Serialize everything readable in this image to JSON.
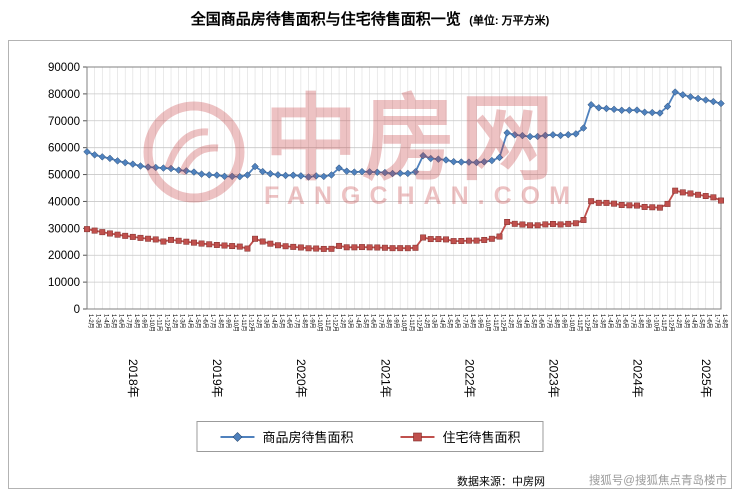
{
  "source": {
    "text": "数据来源：中房网"
  },
  "watermark": {
    "brand": "中房网",
    "domain": "FANGCHAN.COM",
    "overlay": "搜狐号@搜狐焦点青岛楼市",
    "color": "#c5393c"
  },
  "chart_data": {
    "type": "line",
    "title": "全国商品房待售面积与住宅待售面积一览",
    "unit": "(单位: 万平方米)",
    "ylabel": "",
    "xlabel": "",
    "ylim": [
      0,
      90000
    ],
    "ytick_step": 10000,
    "grid": true,
    "legend_position": "bottom",
    "x_labels": [
      "1-2月",
      "1-3月",
      "1-4月",
      "1-5月",
      "1-6月",
      "1-7月",
      "1-8月",
      "1-9月",
      "1-10月",
      "1-11月",
      "1-12月",
      "1-2月",
      "1-3月",
      "1-4月",
      "1-5月",
      "1-6月",
      "1-7月",
      "1-8月",
      "1-9月",
      "1-10月",
      "1-11月",
      "1-12月",
      "1-2月",
      "1-3月",
      "1-4月",
      "1-5月",
      "1-6月",
      "1-7月",
      "1-8月",
      "1-9月",
      "1-10月",
      "1-11月",
      "1-12月",
      "1-2月",
      "1-3月",
      "1-4月",
      "1-5月",
      "1-6月",
      "1-7月",
      "1-8月",
      "1-9月",
      "1-10月",
      "1-11月",
      "1-12月",
      "1-2月",
      "1-3月",
      "1-4月",
      "1-5月",
      "1-6月",
      "1-7月",
      "1-8月",
      "1-9月",
      "1-10月",
      "1-11月",
      "1-12月",
      "1-2月",
      "1-3月",
      "1-4月",
      "1-5月",
      "1-6月",
      "1-7月",
      "1-8月",
      "1-9月",
      "1-10月",
      "1-11月",
      "1-12月",
      "1-2月",
      "1-3月",
      "1-4月",
      "1-5月",
      "1-6月",
      "1-7月",
      "1-8月",
      "1-9月",
      "1-10月",
      "1-11月",
      "1-12月",
      "1-2月",
      "1-3月",
      "1-4月",
      "1-5月",
      "1-6月",
      "1-7月",
      "1-8月"
    ],
    "year_groups": [
      {
        "label": "2018年",
        "count": 11
      },
      {
        "label": "2019年",
        "count": 11
      },
      {
        "label": "2020年",
        "count": 11
      },
      {
        "label": "2021年",
        "count": 11
      },
      {
        "label": "2022年",
        "count": 11
      },
      {
        "label": "2023年",
        "count": 11
      },
      {
        "label": "2024年",
        "count": 11
      },
      {
        "label": "2025年",
        "count": 7
      }
    ],
    "series": [
      {
        "name": "商品房待售面积",
        "color": "#4f81bd",
        "border": "#2c4d74",
        "marker": "diamond",
        "values": [
          58468,
          57329,
          56579,
          56010,
          55083,
          54428,
          53873,
          53191,
          52789,
          52627,
          52414,
          52251,
          51646,
          51380,
          50928,
          50162,
          49876,
          49784,
          49346,
          49322,
          49221,
          49821,
          52985,
          51104,
          50305,
          49907,
          49662,
          49764,
          49525,
          49101,
          49492,
          49287,
          49850,
          52425,
          51253,
          50916,
          51087,
          50983,
          50864,
          50738,
          50385,
          50494,
          50421,
          51023,
          57026,
          55968,
          55735,
          55433,
          54784,
          54655,
          54605,
          54494,
          54734,
          55203,
          56366,
          65528,
          64770,
          64487,
          64120,
          64159,
          64564,
          64795,
          64537,
          64835,
          65134,
          67295,
          75969,
          74833,
          74553,
          74256,
          73894,
          73926,
          73965,
          73177,
          73057,
          72867,
          75327,
          80689,
          79654,
          78903,
          78286,
          77723,
          77132,
          76437
        ]
      },
      {
        "name": "住宅待售面积",
        "color": "#c0504d",
        "border": "#7e2b29",
        "marker": "square",
        "values": [
          29700,
          29150,
          28580,
          28085,
          27640,
          27210,
          26820,
          26450,
          26130,
          25870,
          25091,
          25703,
          25370,
          25023,
          24676,
          24343,
          24068,
          23821,
          23610,
          23406,
          23205,
          22473,
          26111,
          25094,
          24286,
          23708,
          23343,
          23106,
          22881,
          22582,
          22484,
          22343,
          22379,
          23465,
          22951,
          22936,
          23024,
          22934,
          22873,
          22773,
          22622,
          22627,
          22612,
          22761,
          26592,
          26003,
          25995,
          25883,
          25249,
          25295,
          25409,
          25422,
          25680,
          26110,
          26947,
          32371,
          31679,
          31428,
          31130,
          31131,
          31474,
          31625,
          31456,
          31659,
          31893,
          33119,
          40089,
          39480,
          39466,
          39170,
          38683,
          38563,
          38469,
          37953,
          37832,
          37689,
          39088,
          44006,
          43372,
          42963,
          42482,
          42014,
          41532,
          40327
        ]
      }
    ]
  }
}
